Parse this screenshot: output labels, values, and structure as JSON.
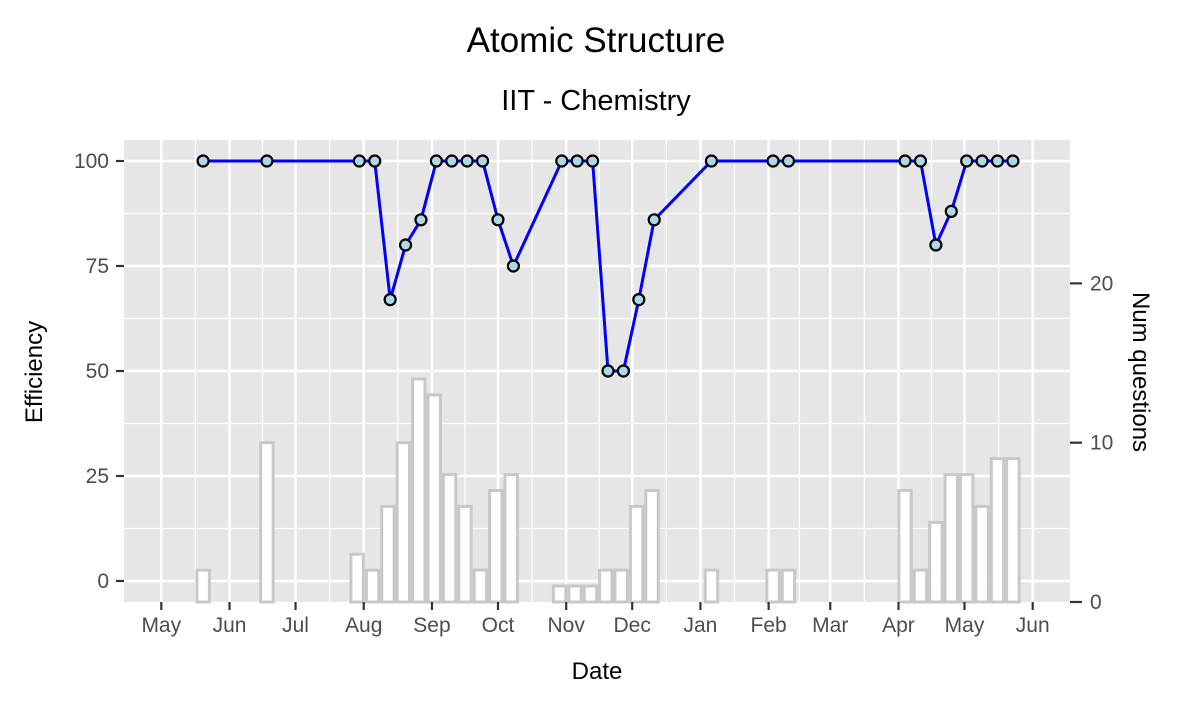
{
  "chart_data": {
    "type": "bar+line",
    "title": "Atomic Structure",
    "subtitle": "IIT - Chemistry",
    "xlabel": "Date",
    "ylabel_left": "Efficiency",
    "ylabel_right": "Num questions",
    "xlim": [
      "2017-05-01",
      "2018-06-01"
    ],
    "ylim_left": [
      -5,
      105
    ],
    "ylim_right": [
      0,
      29
    ],
    "x_ticks": [
      {
        "date": "2017-05-01",
        "label": "May"
      },
      {
        "date": "2017-06-01",
        "label": "Jun"
      },
      {
        "date": "2017-07-01",
        "label": "Jul"
      },
      {
        "date": "2017-08-01",
        "label": "Aug"
      },
      {
        "date": "2017-09-01",
        "label": "Sep"
      },
      {
        "date": "2017-10-01",
        "label": "Oct"
      },
      {
        "date": "2017-11-01",
        "label": "Nov"
      },
      {
        "date": "2017-12-01",
        "label": "Dec"
      },
      {
        "date": "2018-01-01",
        "label": "Jan"
      },
      {
        "date": "2018-02-01",
        "label": "Feb"
      },
      {
        "date": "2018-03-01",
        "label": "Mar"
      },
      {
        "date": "2018-04-01",
        "label": "Apr"
      },
      {
        "date": "2018-05-01",
        "label": "May"
      },
      {
        "date": "2018-06-01",
        "label": "Jun"
      }
    ],
    "y_ticks_left": [
      0,
      25,
      50,
      75,
      100
    ],
    "y_ticks_right": [
      0,
      10,
      20
    ],
    "grid": true,
    "colors": {
      "panel": "#e6e6e6",
      "grid": "#ffffff",
      "line": "#0000ff",
      "point_fill": "#add8e6",
      "point_stroke": "#000000",
      "bar_fill": "#ffffff",
      "bar_stroke": "#c8c8c8"
    },
    "series": [
      {
        "kind": "bar",
        "axis": "right",
        "bar_width_days": 7,
        "x": [
          "2017-05-20",
          "2017-06-18",
          "2017-07-29",
          "2017-08-05",
          "2017-08-12",
          "2017-08-19",
          "2017-08-26",
          "2017-09-02",
          "2017-09-09",
          "2017-09-16",
          "2017-09-23",
          "2017-09-30",
          "2017-10-07",
          "2017-10-29",
          "2017-11-05",
          "2017-11-12",
          "2017-11-19",
          "2017-11-26",
          "2017-12-03",
          "2017-12-10",
          "2018-01-06",
          "2018-02-03",
          "2018-02-10",
          "2018-04-04",
          "2018-04-11",
          "2018-04-18",
          "2018-04-25",
          "2018-05-02",
          "2018-05-09",
          "2018-05-16",
          "2018-05-23"
        ],
        "values": [
          2,
          10,
          3,
          2,
          6,
          10,
          14,
          13,
          8,
          6,
          2,
          7,
          8,
          1,
          1,
          1,
          2,
          2,
          6,
          7,
          2,
          2,
          2,
          7,
          2,
          5,
          8,
          8,
          6,
          9,
          9
        ]
      },
      {
        "kind": "line",
        "axis": "left",
        "x": [
          "2017-05-20",
          "2017-06-18",
          "2017-07-30",
          "2017-08-06",
          "2017-08-13",
          "2017-08-20",
          "2017-08-27",
          "2017-09-03",
          "2017-09-10",
          "2017-09-17",
          "2017-09-24",
          "2017-10-01",
          "2017-10-08",
          "2017-10-30",
          "2017-11-06",
          "2017-11-13",
          "2017-11-20",
          "2017-11-27",
          "2017-12-04",
          "2017-12-11",
          "2018-01-06",
          "2018-02-03",
          "2018-02-10",
          "2018-04-04",
          "2018-04-11",
          "2018-04-18",
          "2018-04-25",
          "2018-05-02",
          "2018-05-09",
          "2018-05-16",
          "2018-05-23"
        ],
        "values": [
          100,
          100,
          100,
          100,
          67,
          80,
          86,
          100,
          100,
          100,
          100,
          86,
          75,
          100,
          100,
          100,
          50,
          50,
          67,
          86,
          100,
          100,
          100,
          100,
          100,
          80,
          88,
          100,
          100,
          100,
          100
        ]
      }
    ]
  }
}
